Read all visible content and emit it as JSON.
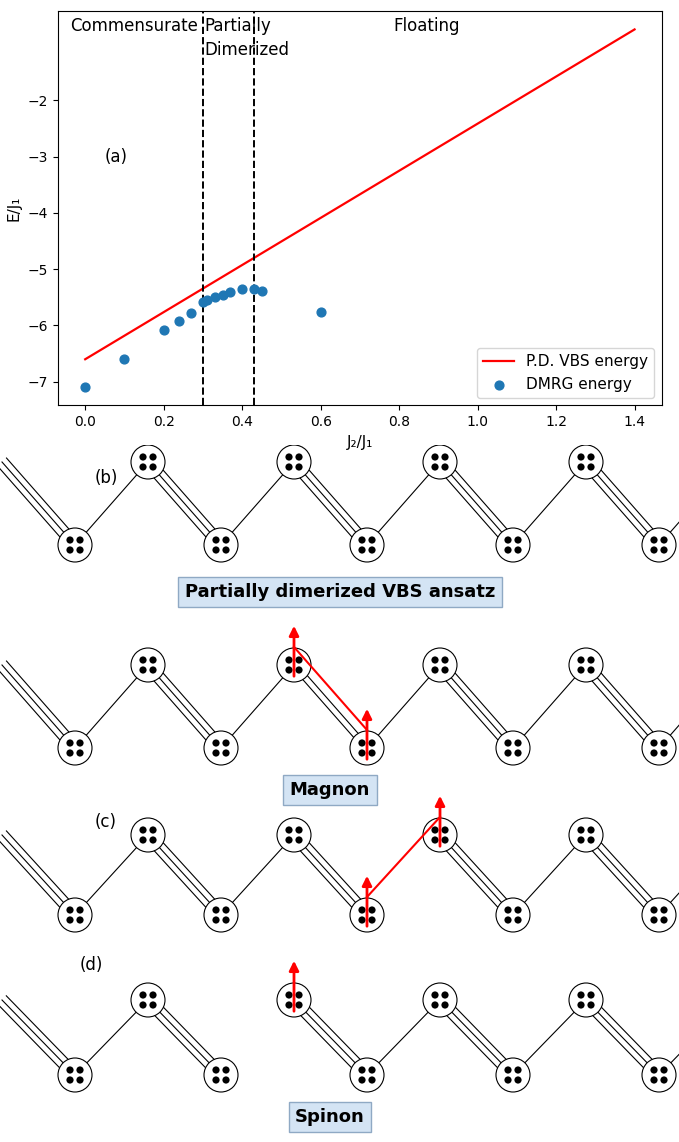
{
  "chart_data": {
    "type": "line",
    "xlabel": "J₂/J₁",
    "ylabel": "E/J₁",
    "xlim": [
      -0.07,
      1.47
    ],
    "ylim": [
      -7.42,
      -0.42
    ],
    "xticks": [
      {
        "value": 0,
        "label": "0.0"
      },
      0.2,
      0.4,
      0.6,
      0.8,
      {
        "value": 1,
        "label": "1.0"
      },
      1.2,
      1.4
    ],
    "yticks": [
      {
        "value": -7,
        "label": "−7"
      },
      {
        "value": -6,
        "label": "−6"
      },
      {
        "value": -5,
        "label": "−5"
      },
      {
        "value": -4,
        "label": "−4"
      },
      {
        "value": -3,
        "label": "−3"
      },
      {
        "value": -2,
        "label": "−2"
      }
    ],
    "legend": "lower right",
    "series": [
      {
        "name": "P.D. VBS energy",
        "type": "line",
        "color": "#ff0000",
        "line_style": "solid",
        "x": [
          0,
          1.4
        ],
        "values": [
          -6.6,
          -0.74
        ]
      },
      {
        "name": "DMRG energy",
        "type": "scatter",
        "color": "#1f77b4",
        "marker": "o",
        "x": [
          0,
          0.1,
          0.2,
          0.24,
          0.27,
          0.3,
          0.31,
          0.33,
          0.35,
          0.37,
          0.4,
          0.43,
          0.45,
          0.6
        ],
        "values": [
          -7.1,
          -6.6,
          -6.08,
          -5.92,
          -5.77,
          -5.58,
          -5.55,
          -5.5,
          -5.46,
          -5.41,
          -5.35,
          -5.35,
          -5.38,
          -5.76
        ]
      }
    ],
    "boundaries": [
      0.3,
      0.43
    ],
    "regions": [
      "Commensurate",
      "Partially\nDimerized",
      "Floating"
    ],
    "panel_label": "(a)",
    "panel_label_position": [
      0.05,
      -3.0
    ]
  },
  "diagram": {
    "panels": [
      {
        "label": "(b)",
        "caption": "Partially dimerized VBS ansatz"
      },
      {
        "label": "(c)",
        "caption": "Magnon"
      },
      {
        "label": "(d)",
        "caption": "Spinon"
      }
    ]
  }
}
